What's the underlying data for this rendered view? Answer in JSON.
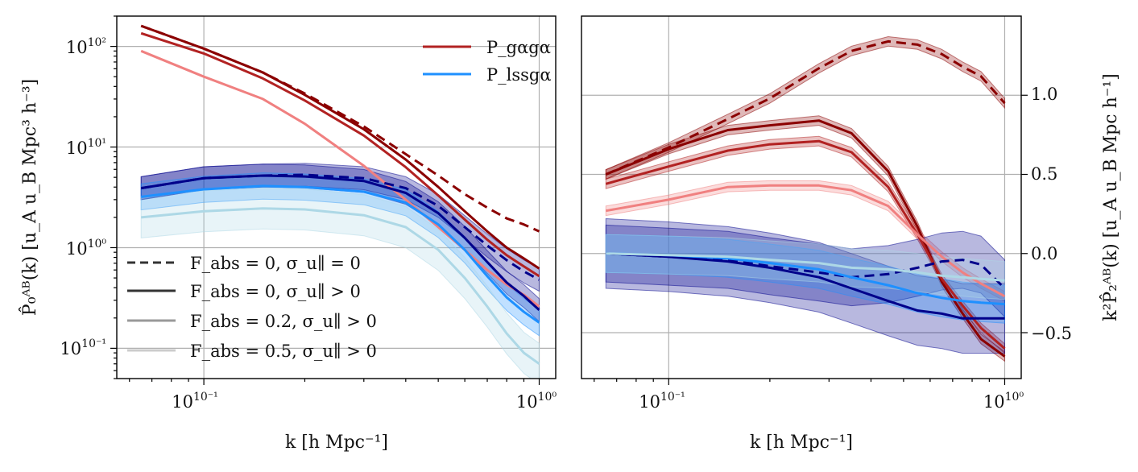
{
  "figure_description_text": "",
  "chart_data": [
    {
      "type": "line",
      "panel": "left",
      "title": "",
      "xlabel": "k [h Mpc⁻¹]",
      "ylabel": "P̂₀ᴬᴮ(k) [u_A u_B Mpc³ h⁻³]",
      "xscale": "log",
      "yscale": "log",
      "xlim": [
        0.055,
        1.12
      ],
      "ylim": [
        0.05,
        200
      ],
      "x_tick_labels": [
        {
          "value": 0.1,
          "label": "10⁻¹"
        },
        {
          "value": 1.0,
          "label": "10⁰"
        }
      ],
      "y_tick_labels": [
        {
          "value": 0.1,
          "label": "10⁻¹"
        },
        {
          "value": 1,
          "label": "10⁰"
        },
        {
          "value": 10,
          "label": "10¹"
        },
        {
          "value": 100,
          "label": "10²"
        }
      ],
      "grid": true,
      "x": [
        0.065,
        0.1,
        0.15,
        0.2,
        0.3,
        0.4,
        0.5,
        0.6,
        0.7,
        0.8,
        0.9,
        1.0
      ],
      "series": [
        {
          "name": "P_gg, F_abs=0, σ=0",
          "color": "#8b0000",
          "style": "dashed",
          "values": [
            160,
            95,
            55,
            34,
            16,
            8.5,
            5.2,
            3.4,
            2.5,
            1.95,
            1.7,
            1.45
          ]
        },
        {
          "name": "P_gg, F_abs=0, σ>0",
          "color": "#8b0000",
          "style": "solid",
          "values": [
            160,
            95,
            55,
            33,
            15,
            7.5,
            4.0,
            2.3,
            1.45,
            1.0,
            0.78,
            0.62
          ]
        },
        {
          "name": "P_gg, F_abs=0.2, σ>0",
          "color": "#b22222",
          "style": "solid",
          "values": [
            135,
            85,
            48,
            29,
            13,
            6.3,
            3.3,
            1.9,
            1.2,
            0.84,
            0.65,
            0.52
          ]
        },
        {
          "name": "P_gg, F_abs=0.5, σ>0",
          "color": "#f08080",
          "style": "solid",
          "values": [
            90,
            50,
            30,
            17,
            6.5,
            3.0,
            1.6,
            0.95,
            0.6,
            0.43,
            0.34,
            0.26
          ]
        },
        {
          "name": "P_lg, F_abs=0, σ=0",
          "color": "#00008b",
          "style": "dashed",
          "band": 0.3,
          "values": [
            3.9,
            4.9,
            5.2,
            5.3,
            4.9,
            3.9,
            2.6,
            1.6,
            1.05,
            0.75,
            0.58,
            0.48
          ]
        },
        {
          "name": "P_lg, F_abs=0, σ>0",
          "color": "#00008b",
          "style": "solid",
          "band": 0.3,
          "values": [
            3.9,
            4.9,
            5.2,
            5.1,
            4.6,
            3.5,
            2.2,
            1.25,
            0.72,
            0.45,
            0.33,
            0.24
          ]
        },
        {
          "name": "P_lg, F_abs=0.2, σ>0",
          "color": "#1e90ff",
          "style": "solid",
          "band": 0.35,
          "values": [
            3.2,
            3.8,
            4.1,
            4.0,
            3.6,
            2.8,
            1.7,
            0.95,
            0.52,
            0.32,
            0.23,
            0.18
          ]
        },
        {
          "name": "P_lg, F_abs=0.5, σ>0",
          "color": "#add8e6",
          "style": "solid",
          "band": 0.6,
          "values": [
            2.0,
            2.3,
            2.45,
            2.4,
            2.1,
            1.6,
            0.95,
            0.5,
            0.26,
            0.14,
            0.09,
            0.07
          ]
        }
      ],
      "legend_tracers": [
        {
          "label": "P_gαgα",
          "color": "#b22222"
        },
        {
          "label": "P_lssgα",
          "color": "#1e90ff"
        }
      ],
      "legend_styles": [
        {
          "label": "F_abs = 0, σ_u∥ = 0",
          "color": "#333333",
          "style": "dashed"
        },
        {
          "label": "F_abs = 0, σ_u∥ > 0",
          "color": "#333333",
          "style": "solid"
        },
        {
          "label": "F_abs = 0.2, σ_u∥ > 0",
          "color": "#999999",
          "style": "solid"
        },
        {
          "label": "F_abs = 0.5, σ_u∥ > 0",
          "color": "#cccccc",
          "style": "solid"
        }
      ],
      "legend_tracers_position": "top-right",
      "legend_styles_position": "bottom-left"
    },
    {
      "type": "line",
      "panel": "right",
      "title": "",
      "xlabel": "k [h Mpc⁻¹]",
      "ylabel": "k²P̂₂ᴬᴮ(k) [u_A u_B Mpc h⁻¹]",
      "xscale": "log",
      "yscale": "linear",
      "xlim": [
        0.055,
        1.12
      ],
      "ylim": [
        -0.79,
        1.5
      ],
      "x_tick_labels": [
        {
          "value": 0.1,
          "label": "10⁻¹"
        },
        {
          "value": 1.0,
          "label": "10⁰"
        }
      ],
      "y_tick_labels": [
        {
          "value": -0.5,
          "label": "−0.5"
        },
        {
          "value": 0.0,
          "label": "0.0"
        },
        {
          "value": 0.5,
          "label": "0.5"
        },
        {
          "value": 1.0,
          "label": "1.0"
        }
      ],
      "grid": true,
      "yaxis_side": "right",
      "x": [
        0.065,
        0.1,
        0.15,
        0.2,
        0.28,
        0.35,
        0.45,
        0.55,
        0.65,
        0.75,
        0.85,
        1.0
      ],
      "series": [
        {
          "name": "P_gg, F_abs=0, σ=0",
          "color": "#8b0000",
          "style": "dashed",
          "band": 0.03,
          "values": [
            0.5,
            0.67,
            0.85,
            0.98,
            1.17,
            1.28,
            1.34,
            1.32,
            1.26,
            1.18,
            1.12,
            0.95
          ]
        },
        {
          "name": "P_gg, F_abs=0, σ>0",
          "color": "#8b0000",
          "style": "solid",
          "band": 0.03,
          "values": [
            0.5,
            0.66,
            0.78,
            0.81,
            0.84,
            0.76,
            0.52,
            0.17,
            -0.18,
            -0.38,
            -0.54,
            -0.65
          ]
        },
        {
          "name": "P_gg, F_abs=0.2, σ>0",
          "color": "#b22222",
          "style": "solid",
          "band": 0.03,
          "values": [
            0.44,
            0.55,
            0.65,
            0.69,
            0.71,
            0.64,
            0.42,
            0.12,
            -0.16,
            -0.33,
            -0.47,
            -0.6
          ]
        },
        {
          "name": "P_gg, F_abs=0.5, σ>0",
          "color": "#f08080",
          "style": "solid",
          "band": 0.03,
          "values": [
            0.27,
            0.34,
            0.42,
            0.43,
            0.43,
            0.4,
            0.3,
            0.12,
            -0.02,
            -0.12,
            -0.19,
            -0.27
          ]
        },
        {
          "name": "P_lg, F_abs=0, σ=0",
          "color": "#00008b",
          "style": "dashed",
          "band": 0.18,
          "values": [
            0.0,
            -0.02,
            -0.04,
            -0.08,
            -0.12,
            -0.15,
            -0.13,
            -0.09,
            -0.05,
            -0.04,
            -0.07,
            -0.22
          ]
        },
        {
          "name": "P_lg, F_abs=0, σ>0",
          "color": "#00008b",
          "style": "solid",
          "band": 0.22,
          "values": [
            0.0,
            -0.02,
            -0.05,
            -0.09,
            -0.15,
            -0.22,
            -0.3,
            -0.36,
            -0.38,
            -0.41,
            -0.41,
            -0.41
          ]
        },
        {
          "name": "P_lg, F_abs=0.2, σ>0",
          "color": "#1e90ff",
          "style": "solid",
          "band": 0.12,
          "values": [
            0.0,
            -0.01,
            -0.03,
            -0.06,
            -0.1,
            -0.15,
            -0.2,
            -0.25,
            -0.28,
            -0.3,
            -0.31,
            -0.32
          ]
        },
        {
          "name": "P_lg, F_abs=0.5, σ>0",
          "color": "#add8e6",
          "style": "solid",
          "band": 0.12,
          "values": [
            0.0,
            -0.01,
            -0.02,
            -0.04,
            -0.06,
            -0.09,
            -0.1,
            -0.12,
            -0.14,
            -0.15,
            -0.16,
            -0.17
          ]
        }
      ]
    }
  ]
}
